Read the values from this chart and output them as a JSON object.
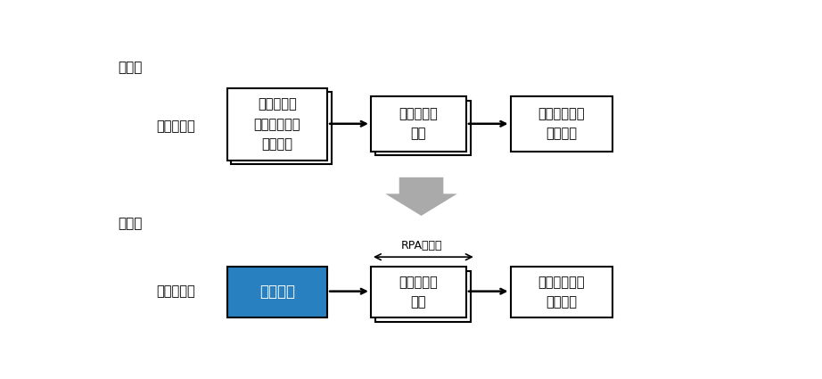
{
  "bg_color": "#ffffff",
  "label_before": "活用前",
  "label_after": "活用後",
  "label_contract": "契約書情報",
  "box1_text": "エクセルの\nサマリシート\nへの入力",
  "box2_text": "入力情報の\n確認",
  "box3_text": "基幹システム\nへの登録",
  "box4_text": "自動転記",
  "box5_text": "入力情報の\n確認",
  "box6_text": "基幹システム\nへの登録",
  "rpa_label": "RPAの活用",
  "box_edge_color": "#000000",
  "box_fill_color": "#ffffff",
  "blue_fill_color": "#2980C0",
  "blue_text_color": "#ffffff",
  "arrow_color": "#000000",
  "big_arrow_color": "#aaaaaa",
  "font_size_label": 10.5,
  "font_size_box": 10.5,
  "font_size_section": 11,
  "font_size_blue_box": 12,
  "figwidth": 9.22,
  "figheight": 4.25,
  "dpi": 100
}
